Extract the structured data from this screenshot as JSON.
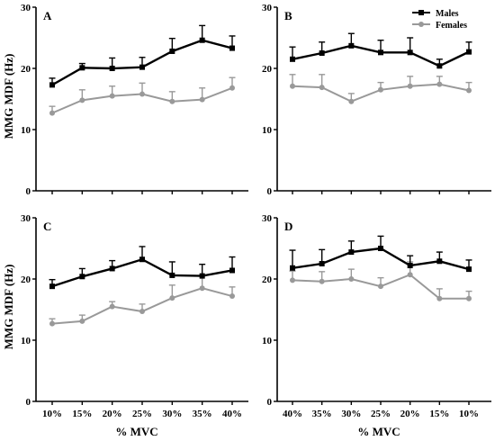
{
  "figure": {
    "y_axis_title": "MMG MDF (Hz)",
    "x_axis_title": "% MVC"
  },
  "legend": [
    {
      "name": "Males",
      "color": "#000000",
      "marker": "square"
    },
    {
      "name": "Females",
      "color": "#999999",
      "marker": "circle"
    }
  ],
  "chart_data": [
    {
      "type": "line",
      "panel": "A",
      "categories": [
        "10%",
        "15%",
        "20%",
        "25%",
        "30%",
        "35%",
        "40%"
      ],
      "ylim": [
        0,
        30
      ],
      "yticks": [
        0,
        10,
        20,
        30
      ],
      "show_x_tick_labels": false,
      "legend_placement": "none",
      "series": [
        {
          "name": "Males",
          "color": "#000000",
          "values": [
            17.3,
            20.1,
            20.0,
            20.2,
            22.8,
            24.6,
            23.3
          ],
          "errors": [
            1.1,
            0.7,
            1.7,
            1.6,
            2.1,
            2.4,
            2.0
          ]
        },
        {
          "name": "Females",
          "color": "#999999",
          "values": [
            12.7,
            14.8,
            15.5,
            15.8,
            14.6,
            14.9,
            16.8
          ],
          "errors": [
            1.1,
            1.7,
            1.6,
            1.8,
            1.6,
            1.9,
            1.7
          ]
        }
      ]
    },
    {
      "type": "line",
      "panel": "B",
      "categories": [
        "40%",
        "35%",
        "30%",
        "25%",
        "20%",
        "15%",
        "10%"
      ],
      "ylim": [
        0,
        30
      ],
      "yticks": [
        0,
        10,
        20,
        30
      ],
      "show_x_tick_labels": false,
      "legend_placement": "top-right",
      "series": [
        {
          "name": "Males",
          "color": "#000000",
          "values": [
            21.5,
            22.5,
            23.7,
            22.6,
            22.6,
            20.4,
            22.7
          ],
          "errors": [
            2.0,
            1.8,
            2.0,
            2.0,
            2.4,
            1.1,
            1.6
          ]
        },
        {
          "name": "Females",
          "color": "#999999",
          "values": [
            17.1,
            16.9,
            14.6,
            16.5,
            17.1,
            17.4,
            16.4
          ],
          "errors": [
            1.9,
            2.1,
            1.3,
            1.2,
            1.6,
            1.3,
            1.3
          ]
        }
      ]
    },
    {
      "type": "line",
      "panel": "C",
      "categories": [
        "10%",
        "15%",
        "20%",
        "25%",
        "30%",
        "35%",
        "40%"
      ],
      "ylim": [
        0,
        30
      ],
      "yticks": [
        0,
        10,
        20,
        30
      ],
      "show_x_tick_labels": true,
      "legend_placement": "none",
      "series": [
        {
          "name": "Males",
          "color": "#000000",
          "values": [
            18.8,
            20.4,
            21.7,
            23.2,
            20.6,
            20.5,
            21.4
          ],
          "errors": [
            1.1,
            1.3,
            1.3,
            2.1,
            2.2,
            1.9,
            2.2
          ]
        },
        {
          "name": "Females",
          "color": "#999999",
          "values": [
            12.7,
            13.1,
            15.5,
            14.7,
            16.9,
            18.5,
            17.2
          ],
          "errors": [
            0.8,
            1.0,
            0.8,
            1.2,
            2.1,
            2.1,
            1.5
          ]
        }
      ]
    },
    {
      "type": "line",
      "panel": "D",
      "categories": [
        "40%",
        "35%",
        "30%",
        "25%",
        "20%",
        "15%",
        "10%"
      ],
      "ylim": [
        0,
        30
      ],
      "yticks": [
        0,
        10,
        20,
        30
      ],
      "show_x_tick_labels": true,
      "legend_placement": "none",
      "series": [
        {
          "name": "Males",
          "color": "#000000",
          "values": [
            21.8,
            22.5,
            24.4,
            25.0,
            22.2,
            22.9,
            21.6
          ],
          "errors": [
            2.9,
            2.3,
            1.8,
            2.0,
            1.6,
            1.5,
            1.5
          ]
        },
        {
          "name": "Females",
          "color": "#999999",
          "values": [
            19.8,
            19.6,
            20.0,
            18.8,
            20.7,
            16.8,
            16.8
          ],
          "errors": [
            1.5,
            1.6,
            1.6,
            1.4,
            2.1,
            1.6,
            1.2
          ]
        }
      ]
    }
  ]
}
